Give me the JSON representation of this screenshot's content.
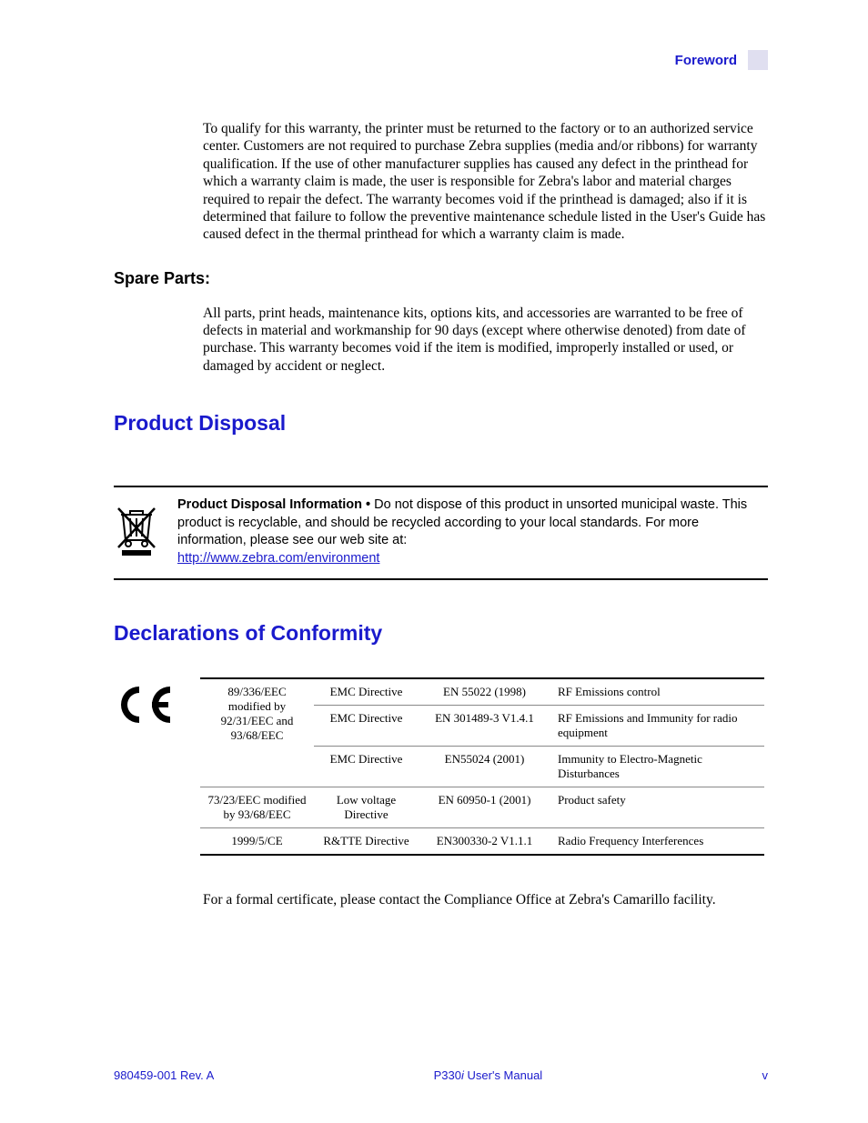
{
  "header": {
    "label": "Foreword"
  },
  "warranty_para": "To qualify for this warranty, the printer must be returned to the factory or to an authorized service center. Customers are not required to purchase Zebra supplies (media and/or ribbons) for warranty qualification. If the use of other manufacturer supplies has caused any defect in the printhead for which a warranty claim is made, the user is responsible for Zebra's labor and material charges required to repair the defect. The warranty becomes void if the printhead is damaged; also if it is determined that failure to follow the preventive maintenance schedule listed in the User's Guide has caused defect in the thermal printhead for which a warranty claim is made.",
  "spare_parts": {
    "heading": "Spare Parts:",
    "text": "All parts, print heads, maintenance kits, options kits, and accessories are warranted to be free of defects in material and workmanship for 90 days (except where otherwise denoted) from date of purchase. This warranty becomes void if the item is modified, improperly installed or used, or damaged by accident or neglect."
  },
  "disposal": {
    "heading": "Product Disposal",
    "label": "Product Disposal Information • ",
    "text": "Do not dispose of this product in unsorted municipal waste. This product is recyclable, and should be recycled according to your local standards. For more information, please see our web site at:",
    "link": "http://www.zebra.com/environment"
  },
  "conformity": {
    "heading": "Declarations of Conformity",
    "rows": [
      {
        "c1": "89/336/EEC modified by 92/31/EEC and 93/68/EEC",
        "c1_rowspan": 3,
        "c2": "EMC Directive",
        "c3": "EN 55022 (1998)",
        "c4": "RF Emissions control"
      },
      {
        "c2": "EMC Directive",
        "c3": "EN 301489-3 V1.4.1",
        "c4": "RF Emissions and Immunity for radio equipment"
      },
      {
        "c2": "EMC Directive",
        "c3": "EN55024 (2001)",
        "c4": "Immunity to Electro-Magnetic Disturbances"
      },
      {
        "c1": "73/23/EEC modified by 93/68/EEC",
        "c2": "Low voltage Directive",
        "c3": "EN 60950-1 (2001)",
        "c4": "Product safety"
      },
      {
        "c1": "1999/5/CE",
        "c2": "R&TTE Directive",
        "c3": "EN300330-2 V1.1.1",
        "c4": "Radio Frequency Interferences"
      }
    ],
    "closing": "For a formal certificate, please contact the Compliance Office at Zebra's Camarillo facility."
  },
  "footer": {
    "left": "980459-001 Rev. A",
    "center_prefix": "P330",
    "center_ital": "i",
    "center_suffix": " User's Manual",
    "right": "v"
  }
}
